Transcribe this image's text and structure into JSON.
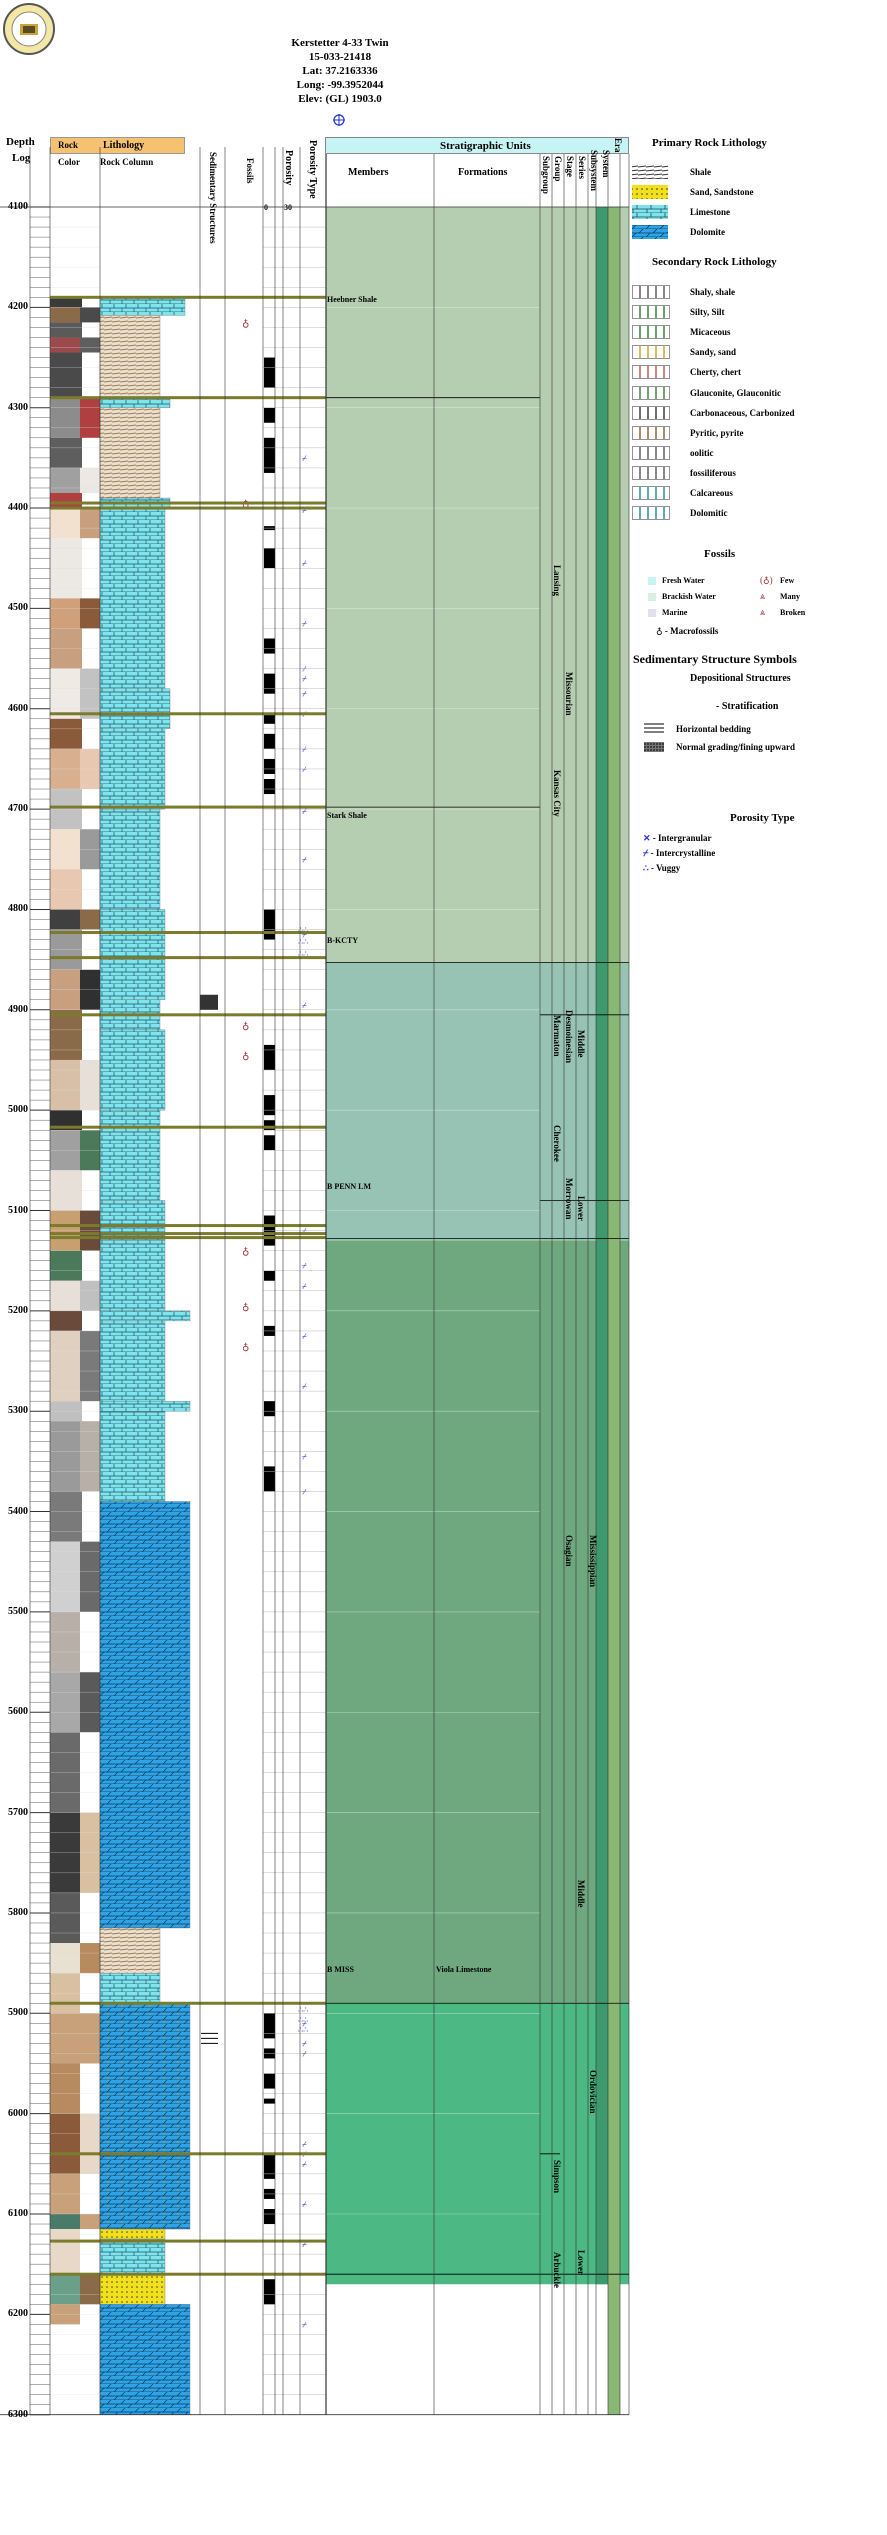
{
  "well": {
    "name": "Kerstetter 4-33 Twin",
    "api": "15-033-21418",
    "lat": "Lat: 37.2163336",
    "long": "Long: -99.3952044",
    "elev": "Elev: (GL) 1903.0"
  },
  "columns": {
    "depth": "Depth",
    "log": "Log",
    "rock": "Rock",
    "color": "Color",
    "lithology": "Lithology",
    "rock_column": "Rock Column",
    "sedimentary_structures": "Sedimentary Structures",
    "fossils": "Fossils",
    "porosity": "Porosity",
    "porosity_type": "Porosity Type",
    "porosity_min": "0",
    "porosity_max": "30",
    "strat_units": "Stratigraphic Units",
    "members": "Members",
    "formations": "Formations",
    "subgroup": "Subgroup",
    "group": "Group",
    "stage": "Stage",
    "series": "Series",
    "subsystem": "Subsystem",
    "system": "System",
    "era": "Era"
  },
  "depth_labels": [
    "4100",
    "4200",
    "4300",
    "4400",
    "4500",
    "4600",
    "4700",
    "4800",
    "4900",
    "5000",
    "5100",
    "5200",
    "5300",
    "5400",
    "5500",
    "5600",
    "5700",
    "5800",
    "5900",
    "6000",
    "6100",
    "6200",
    "6300"
  ],
  "member_labels": [
    "Heebner Shale",
    "Stark Shale",
    "B-KCTY",
    "B PENN LM",
    "B MISS"
  ],
  "formation_labels": [
    "Viola Limestone"
  ],
  "strat_text": {
    "lansing": "Lansing",
    "kansas_city": "Kansas City",
    "missourian": "Missourian",
    "desmoinesian": "Desmoinesian",
    "marmaton": "Marmaton",
    "cherokee": "Cherokee",
    "morrowan": "Morrowan",
    "middle_penn": "Middle",
    "lower_penn": "Lower",
    "mississippian": "Mississippian",
    "osagian": "Osagian",
    "middle_ord": "Middle",
    "ordovician": "Ordovician",
    "simpson": "Simpson",
    "arbuckle": "Arbuckle",
    "lower_ord": "Lower"
  },
  "legend": {
    "primary_title": "Primary Rock Lithology",
    "primary": [
      "Shale",
      "Sand, Sandstone",
      "Limestone",
      "Dolomite"
    ],
    "secondary_title": "Secondary Rock Lithology",
    "secondary": [
      "Shaly, shale",
      "Silty, Silt",
      "Micaceous",
      "Sandy, sand",
      "Cherty, chert",
      "Glauconite, Glauconitic",
      "Carbonaceous, Carbonized",
      "Pyritic, pyrite",
      "oolitic",
      "fossiliferous",
      "Calcareous",
      "Dolomitic"
    ],
    "fossils_title": "Fossils",
    "fossil_env": [
      "Fresh Water",
      "Brackish Water",
      "Marine"
    ],
    "fossil_abund": [
      "Few",
      "Many",
      "Broken"
    ],
    "macrofossils": "- Macrofossils",
    "sed_title": "Sedimentary Structure Symbols",
    "dep_title": "Depositional Structures",
    "strat_title": "- Stratification",
    "sed_items": [
      "Horizontal bedding",
      "Normal grading/fining upward"
    ],
    "porosity_title": "Porosity Type",
    "porosity_items": [
      "- Intergranular",
      "- Intercrystalline",
      "- Vuggy"
    ]
  },
  "colors": {
    "header_orange": "#f5c272",
    "header_cyan": "#c6f3f3",
    "penn_upper": "#b5cdb0",
    "penn_mid": "#97c3b5",
    "miss": "#6fa87f",
    "ord": "#4cb883",
    "limestone": "#7fe4ee",
    "dolomite": "#2ea3e6",
    "sand": "#f1e01a"
  }
}
